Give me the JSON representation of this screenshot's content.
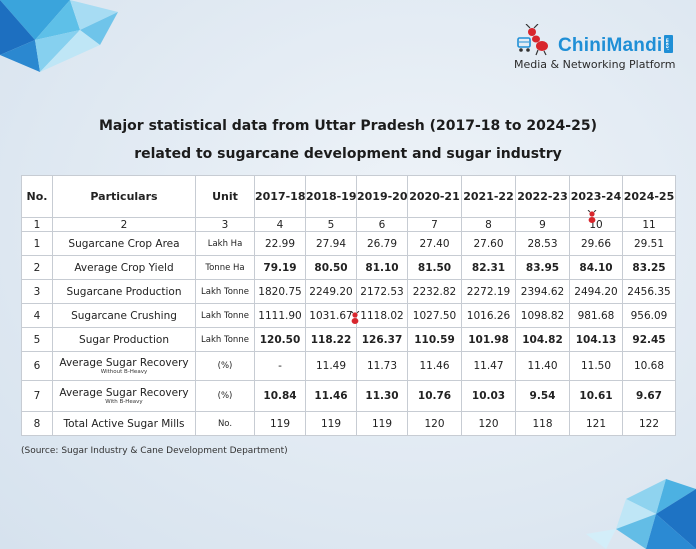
{
  "brand": {
    "name_part1": "Chini",
    "name_part2": "Mandi",
    "domain_tag": ".com",
    "tagline": "Media & Networking Platform"
  },
  "title_line1": "Major statistical data from Uttar Pradesh (2017-18 to 2024-25)",
  "title_line2": "related to sugarcane development and sugar industry",
  "table": {
    "headers": [
      "No.",
      "Particulars",
      "Unit",
      "2017-18",
      "2018-19",
      "2019-20",
      "2020-21",
      "2021-22",
      "2022-23",
      "2023-24",
      "2024-25"
    ],
    "index_row": [
      "1",
      "2",
      "3",
      "4",
      "5",
      "6",
      "7",
      "8",
      "9",
      "10",
      "11"
    ],
    "rows": [
      {
        "no": "1",
        "particular": "Sugarcane Crop Area",
        "sub": "",
        "unit": "Lakh Ha",
        "values": [
          "22.99",
          "27.94",
          "26.79",
          "27.40",
          "27.60",
          "28.53",
          "29.66",
          "29.51"
        ]
      },
      {
        "no": "2",
        "particular": "Average Crop Yield",
        "sub": "",
        "unit": "Tonne Ha",
        "values": [
          "79.19",
          "80.50",
          "81.10",
          "81.50",
          "82.31",
          "83.95",
          "84.10",
          "83.25"
        ]
      },
      {
        "no": "3",
        "particular": "Sugarcane Production",
        "sub": "",
        "unit": "Lakh Tonne",
        "values": [
          "1820.75",
          "2249.20",
          "2172.53",
          "2232.82",
          "2272.19",
          "2394.62",
          "2494.20",
          "2456.35"
        ]
      },
      {
        "no": "4",
        "particular": "Sugarcane Crushing",
        "sub": "",
        "unit": "Lakh Tonne",
        "values": [
          "1111.90",
          "1031.67",
          "1118.02",
          "1027.50",
          "1016.26",
          "1098.82",
          "981.68",
          "956.09"
        ]
      },
      {
        "no": "5",
        "particular": "Sugar Production",
        "sub": "",
        "unit": "Lakh Tonne",
        "values": [
          "120.50",
          "118.22",
          "126.37",
          "110.59",
          "101.98",
          "104.82",
          "104.13",
          "92.45"
        ]
      },
      {
        "no": "6",
        "particular": "Average Sugar Recovery",
        "sub": "Without B-Heavy",
        "unit": "(%)",
        "values": [
          "-",
          "11.49",
          "11.73",
          "11.46",
          "11.47",
          "11.40",
          "11.50",
          "10.68"
        ]
      },
      {
        "no": "7",
        "particular": "Average Sugar Recovery",
        "sub": "With B-Heavy",
        "unit": "(%)",
        "values": [
          "10.84",
          "11.46",
          "11.30",
          "10.76",
          "10.03",
          "9.54",
          "10.61",
          "9.67"
        ]
      },
      {
        "no": "8",
        "particular": "Total Active Sugar Mills",
        "sub": "",
        "unit": "No.",
        "values": [
          "119",
          "119",
          "119",
          "120",
          "120",
          "118",
          "121",
          "122"
        ]
      }
    ]
  },
  "source": "(Source: Sugar Industry & Cane Development Department)",
  "colors": {
    "brand_blue": "#1f8fd6",
    "ant_red": "#d8262d",
    "background": "#dfe8f2"
  }
}
